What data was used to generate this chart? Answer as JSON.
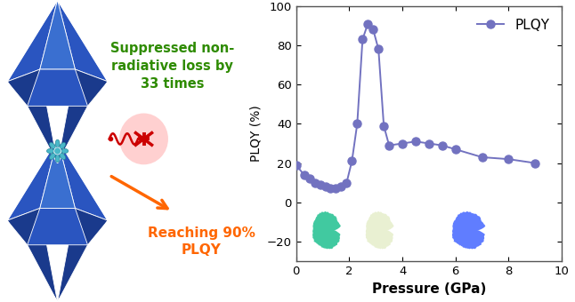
{
  "pressure": [
    0.0,
    0.3,
    0.5,
    0.7,
    0.9,
    1.1,
    1.3,
    1.5,
    1.7,
    1.9,
    2.1,
    2.3,
    2.5,
    2.7,
    2.9,
    3.1,
    3.3,
    3.5,
    4.0,
    4.5,
    5.0,
    5.5,
    6.0,
    7.0,
    8.0,
    9.0
  ],
  "plqy": [
    19,
    14,
    12,
    10,
    9,
    8,
    7,
    7,
    8,
    10,
    21,
    40,
    83,
    91,
    88,
    78,
    39,
    29,
    30,
    31,
    30,
    29,
    27,
    23,
    22,
    20
  ],
  "line_color": "#7272c0",
  "marker_color": "#7272c0",
  "legend_label": "PLQY",
  "xlabel": "Pressure (GPa)",
  "ylabel": "PLQY (%)",
  "xlim": [
    0,
    10
  ],
  "ylim": [
    -30,
    100
  ],
  "yticks": [
    -20,
    0,
    20,
    40,
    60,
    80,
    100
  ],
  "xticks": [
    0,
    2,
    4,
    6,
    8,
    10
  ],
  "text_suppressed": "Suppressed non-\nradiative loss by\n33 times",
  "text_reaching": "Reaching 90%\nPLQY",
  "text_suppressed_color": "#2e8b00",
  "text_reaching_color": "#ff6600",
  "fig_bg": "#ffffff",
  "border_color": "#555555",
  "diamond_dark": "#1a3a8c",
  "diamond_mid": "#2a55c0",
  "diamond_light": "#3a6fd0",
  "center_teal": "#4ab8c8"
}
